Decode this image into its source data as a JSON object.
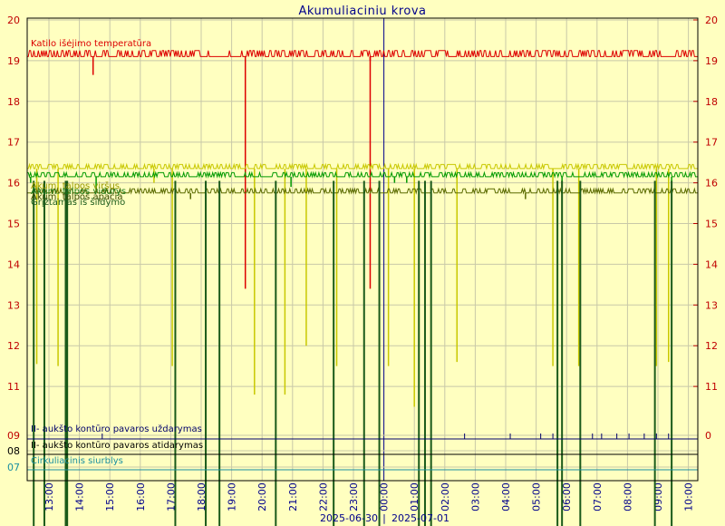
{
  "chart_data": {
    "type": "line",
    "title": "Akumuliaciniu krova",
    "date_labels": [
      "2025-06-30",
      "2025-07-01"
    ],
    "date_separator": "|",
    "x_ticks": [
      "13:00",
      "14:00",
      "15:00",
      "16:00",
      "17:00",
      "18:00",
      "19:00",
      "20:00",
      "21:00",
      "22:00",
      "23:00",
      "00:00",
      "01:00",
      "02:00",
      "03:00",
      "04:00",
      "05:00",
      "06:00",
      "07:00",
      "08:00",
      "09:00",
      "10:00"
    ],
    "y_ticks_left": [
      "20",
      "19",
      "18",
      "17",
      "16",
      "15",
      "14",
      "13",
      "12",
      "11"
    ],
    "y_ticks_right": [
      "20",
      "19",
      "18",
      "17",
      "16",
      "15",
      "14",
      "13",
      "12",
      "11"
    ],
    "ylim": [
      10.1,
      20
    ],
    "bottom_ticks_left": [
      {
        "label": "09",
        "color": "#c00000"
      },
      {
        "label": "08",
        "color": "#000000"
      },
      {
        "label": "07",
        "color": "#1a8fa0"
      }
    ],
    "bottom_tick_right": "0",
    "series": [
      {
        "name": "Katilo išėjimo temperatūra",
        "color": "#dd0000",
        "kind": "line",
        "base": 19.1,
        "upper": 19.25,
        "spikes": [
          [
            14.3,
            18.65
          ],
          [
            19.3,
            13.4
          ],
          [
            23.4,
            13.4
          ],
          [
            23.4,
            19.0
          ]
        ]
      },
      {
        "name": "Akum. talpos viršus",
        "color": "#c8c800",
        "kind": "line",
        "base": 16.35,
        "upper": 16.45,
        "spikes": [
          [
            12.45,
            11.55
          ],
          [
            13.15,
            11.5
          ],
          [
            16.3,
            16.0
          ],
          [
            16.9,
            11.5
          ],
          [
            19.6,
            10.8
          ],
          [
            20.6,
            10.8
          ],
          [
            21.3,
            12.0
          ],
          [
            22.3,
            11.5
          ],
          [
            24.0,
            11.5
          ],
          [
            24.85,
            10.5
          ],
          [
            26.25,
            11.6
          ],
          [
            29.4,
            11.5
          ],
          [
            30.25,
            11.5
          ],
          [
            32.8,
            11.5
          ],
          [
            33.2,
            11.6
          ]
        ]
      },
      {
        "name": "Akum. talpos vidurys",
        "color": "#009900",
        "kind": "line",
        "base": 16.15,
        "upper": 16.25,
        "spikes": [
          [
            12.25,
            16.0
          ],
          [
            14.4,
            15.8
          ],
          [
            20.8,
            15.9
          ],
          [
            24.2,
            16.0
          ],
          [
            24.6,
            16.0
          ],
          [
            29.7,
            15.9
          ],
          [
            33.3,
            16.0
          ]
        ]
      },
      {
        "name": "Akum. talpos apačia",
        "color": "#5a6a00",
        "kind": "line",
        "base": 15.75,
        "upper": 15.85,
        "spikes": [
          [
            17.5,
            15.6
          ],
          [
            28.5,
            15.6
          ]
        ]
      },
      {
        "name": "Grįžtamas iš šildymo",
        "color": "#1a5a1a",
        "kind": "drops",
        "drops": [
          12.35,
          12.7,
          13.4,
          13.45,
          17.0,
          18.0,
          18.45,
          20.3,
          22.2,
          23.2,
          23.7,
          25.0,
          25.2,
          25.4,
          29.55,
          29.7,
          30.3,
          32.75,
          33.3
        ]
      },
      {
        "name": "II- aukšto kontūro pavaros uždarymas",
        "color": "#00006b",
        "kind": "binary",
        "pulses": [
          14.6,
          26.5,
          28.0,
          29.0,
          29.4,
          30.7,
          31.0,
          31.5,
          31.9,
          32.4,
          32.8,
          33.2
        ]
      },
      {
        "name": "II- aukšto kontūro pavaros atidarymas",
        "color": "#000000",
        "kind": "binary",
        "pulses": []
      },
      {
        "name": "Cirkuliacinis siurblys",
        "color": "#1a8fa0",
        "kind": "binary",
        "pulses": []
      }
    ]
  }
}
